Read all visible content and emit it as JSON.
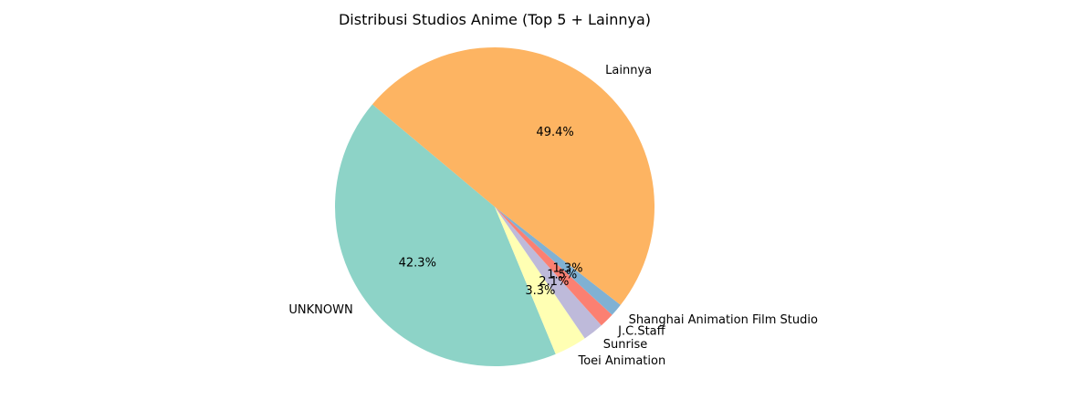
{
  "chart_data": {
    "type": "pie",
    "title": "Distribusi Studios Anime (Top 5 + Lainnya)",
    "slices": [
      {
        "label": "UNKNOWN",
        "value": 42.3,
        "pct_label": "42.3%",
        "color": "#8dd3c7"
      },
      {
        "label": "Toei Animation",
        "value": 3.3,
        "pct_label": "3.3%",
        "color": "#ffffb3"
      },
      {
        "label": "Sunrise",
        "value": 2.1,
        "pct_label": "2.1%",
        "color": "#bebada"
      },
      {
        "label": "J.C.Staff",
        "value": 1.5,
        "pct_label": "1.5%",
        "color": "#fb8072"
      },
      {
        "label": "Shanghai Animation Film Studio",
        "value": 1.3,
        "pct_label": "1.3%",
        "color": "#80b1d3"
      },
      {
        "label": "Lainnya",
        "value": 49.4,
        "pct_label": "49.4%",
        "color": "#fdb462"
      }
    ],
    "start_angle_deg": 140,
    "direction": "counterclockwise",
    "legend": "none"
  }
}
